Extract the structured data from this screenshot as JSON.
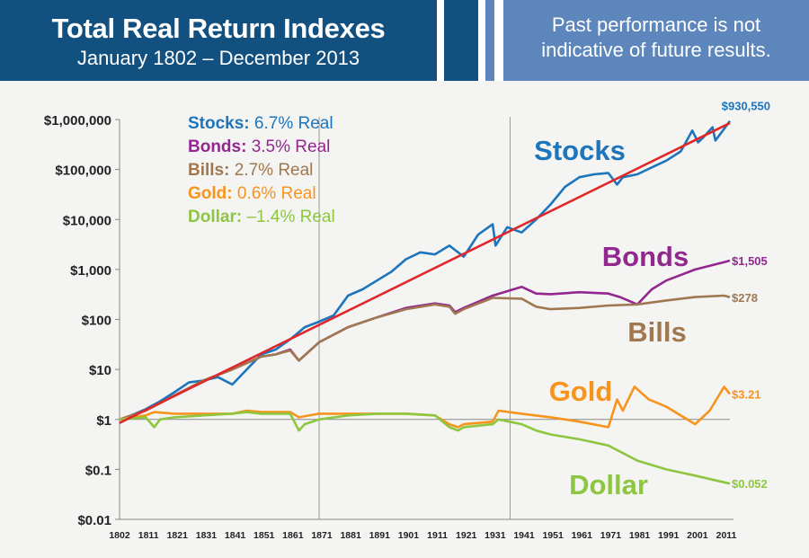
{
  "header": {
    "title": "Total Real Return Indexes",
    "subtitle": "January 1802 – December 2013",
    "disclaimer_line1": "Past performance is not",
    "disclaimer_line2": "indicative of future results."
  },
  "chart_data": {
    "type": "line",
    "y_scale": "log",
    "ylim": [
      0.01,
      1000000
    ],
    "xlim": [
      1802,
      2013
    ],
    "y_ticks": [
      {
        "value": 1000000,
        "label": "$1,000,000"
      },
      {
        "value": 100000,
        "label": "$100,000"
      },
      {
        "value": 10000,
        "label": "$10,000"
      },
      {
        "value": 1000,
        "label": "$1,000"
      },
      {
        "value": 100,
        "label": "$100"
      },
      {
        "value": 10,
        "label": "$10"
      },
      {
        "value": 1,
        "label": "$1"
      },
      {
        "value": 0.1,
        "label": "$0.1"
      },
      {
        "value": 0.01,
        "label": "$0.01"
      }
    ],
    "x_ticks": [
      "1802",
      "1811",
      "1821",
      "1831",
      "1841",
      "1851",
      "1861",
      "1871",
      "1881",
      "1891",
      "1901",
      "1911",
      "1921",
      "1931",
      "1941",
      "1951",
      "1961",
      "1971",
      "1981",
      "1991",
      "2001",
      "2011"
    ],
    "vertical_lines": [
      1871,
      1937
    ],
    "legend": [
      {
        "name": "Stocks:",
        "value": "6.7% Real",
        "color": "#1d75bc"
      },
      {
        "name": "Bonds:",
        "value": "3.5% Real",
        "color": "#92278f"
      },
      {
        "name": "Bills:",
        "value": "2.7% Real",
        "color": "#a07850"
      },
      {
        "name": "Gold:",
        "value": "0.6% Real",
        "color": "#f7941d"
      },
      {
        "name": "Dollar:",
        "value": "–1.4% Real",
        "color": "#8dc63f"
      }
    ],
    "trend_line": {
      "color": "#e0282a",
      "from": [
        1802,
        0.85
      ],
      "to": [
        2013,
        850000
      ]
    },
    "series": [
      {
        "name": "Stocks",
        "color": "#1d75bc",
        "end_label": "$930,550",
        "x": [
          1802,
          1806,
          1811,
          1816,
          1821,
          1826,
          1831,
          1836,
          1841,
          1846,
          1851,
          1856,
          1861,
          1866,
          1871,
          1876,
          1881,
          1886,
          1891,
          1896,
          1901,
          1906,
          1911,
          1916,
          1921,
          1926,
          1931,
          1932,
          1936,
          1941,
          1946,
          1951,
          1956,
          1961,
          1966,
          1971,
          1974,
          1976,
          1981,
          1986,
          1991,
          1996,
          2000,
          2002,
          2004,
          2007,
          2008,
          2011,
          2013
        ],
        "values": [
          1,
          1.2,
          1.6,
          2.3,
          3.5,
          5.5,
          6,
          7,
          5,
          10,
          20,
          25,
          40,
          70,
          90,
          120,
          300,
          400,
          600,
          900,
          1600,
          2200,
          2000,
          3000,
          1800,
          5000,
          8000,
          3000,
          7000,
          5500,
          10000,
          20000,
          45000,
          70000,
          80000,
          85000,
          50000,
          70000,
          80000,
          110000,
          150000,
          230000,
          600000,
          350000,
          450000,
          700000,
          380000,
          650000,
          930550
        ]
      },
      {
        "name": "Bonds",
        "color": "#92278f",
        "end_label": "$1,505",
        "x": [
          1802,
          1811,
          1821,
          1831,
          1841,
          1851,
          1856,
          1861,
          1864,
          1871,
          1881,
          1891,
          1901,
          1911,
          1916,
          1918,
          1921,
          1931,
          1941,
          1946,
          1951,
          1961,
          1971,
          1975,
          1981,
          1986,
          1991,
          2001,
          2011,
          2013
        ],
        "values": [
          1,
          1.5,
          3,
          6,
          10,
          18,
          20,
          25,
          15,
          35,
          70,
          110,
          170,
          210,
          190,
          140,
          170,
          300,
          450,
          330,
          320,
          350,
          330,
          280,
          200,
          400,
          600,
          1000,
          1400,
          1505
        ]
      },
      {
        "name": "Bills",
        "color": "#a07850",
        "end_label": "$278",
        "x": [
          1802,
          1811,
          1821,
          1831,
          1841,
          1851,
          1856,
          1861,
          1864,
          1871,
          1881,
          1891,
          1901,
          1911,
          1916,
          1918,
          1921,
          1931,
          1941,
          1946,
          1951,
          1961,
          1971,
          1981,
          1991,
          2001,
          2011,
          2013
        ],
        "values": [
          1,
          1.5,
          3,
          6,
          10,
          18,
          20,
          24,
          15,
          35,
          70,
          110,
          160,
          200,
          180,
          130,
          160,
          270,
          260,
          180,
          160,
          170,
          190,
          200,
          240,
          280,
          300,
          278
        ]
      },
      {
        "name": "Gold",
        "color": "#f7941d",
        "end_label": "$3.21",
        "x": [
          1802,
          1811,
          1814,
          1821,
          1831,
          1841,
          1846,
          1851,
          1861,
          1864,
          1871,
          1881,
          1891,
          1901,
          1911,
          1916,
          1919,
          1921,
          1931,
          1933,
          1941,
          1951,
          1961,
          1971,
          1974,
          1976,
          1980,
          1985,
          1991,
          2001,
          2006,
          2011,
          2013
        ],
        "values": [
          1,
          1.2,
          1.4,
          1.3,
          1.3,
          1.3,
          1.5,
          1.4,
          1.4,
          1.1,
          1.3,
          1.3,
          1.3,
          1.3,
          1.2,
          0.8,
          0.7,
          0.8,
          0.9,
          1.5,
          1.3,
          1.1,
          0.9,
          0.7,
          2.5,
          1.5,
          4.5,
          2.5,
          1.8,
          0.8,
          1.5,
          4.5,
          3.21
        ]
      },
      {
        "name": "Dollar",
        "color": "#8dc63f",
        "end_label": "$0.052",
        "x": [
          1802,
          1811,
          1814,
          1816,
          1821,
          1831,
          1841,
          1846,
          1851,
          1861,
          1864,
          1866,
          1871,
          1881,
          1891,
          1901,
          1911,
          1916,
          1919,
          1921,
          1931,
          1933,
          1941,
          1946,
          1951,
          1961,
          1971,
          1981,
          1991,
          2001,
          2011,
          2013
        ],
        "values": [
          1,
          1.1,
          0.7,
          1,
          1.1,
          1.2,
          1.3,
          1.4,
          1.3,
          1.3,
          0.6,
          0.8,
          1.0,
          1.2,
          1.3,
          1.3,
          1.2,
          0.7,
          0.6,
          0.7,
          0.8,
          1.0,
          0.8,
          0.6,
          0.5,
          0.4,
          0.3,
          0.15,
          0.1,
          0.075,
          0.055,
          0.052
        ]
      }
    ]
  }
}
